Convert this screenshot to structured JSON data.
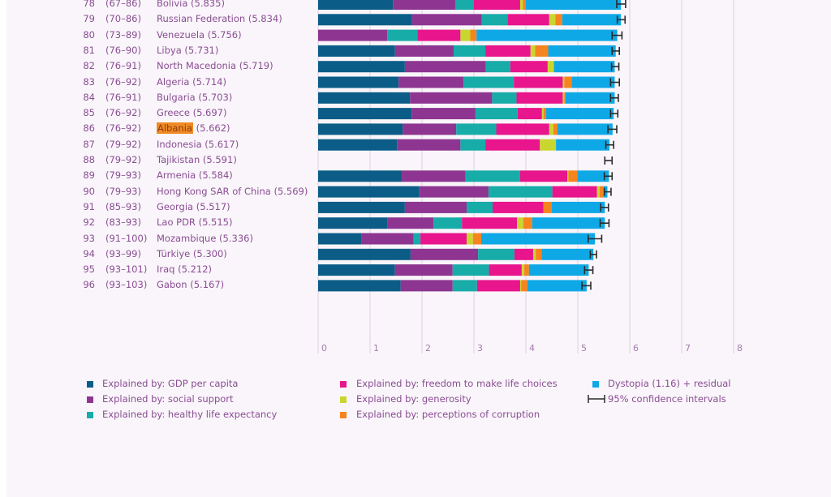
{
  "chart_data": {
    "type": "bar",
    "orientation": "horizontal",
    "stacked": true,
    "title": "",
    "xlabel": "",
    "ylabel": "",
    "xlim": [
      0,
      8
    ],
    "x_ticks": [
      "0",
      "1",
      "2",
      "3",
      "4",
      "5",
      "6",
      "7",
      "8"
    ],
    "grid": true,
    "legend_position": "bottom",
    "highlighted_country": "Albania",
    "highlight_color": "#f08a24",
    "series_names": [
      "GDP per capita",
      "social support",
      "healthy life expectancy",
      "freedom to make life choices",
      "generosity",
      "perceptions of corruption",
      "Dystopia + residual"
    ],
    "colors": [
      "#0b5d87",
      "#8e3591",
      "#17aca8",
      "#e8158c",
      "#c8d62e",
      "#f5841f",
      "#0fa8e6"
    ],
    "rows": [
      {
        "rank": "78",
        "range": "(67–86)",
        "country": "Bolivia",
        "score": "5.835",
        "values": [
          1.44,
          1.2,
          0.36,
          0.89,
          0.05,
          0.06,
          1.83
        ],
        "ci": [
          5.75,
          5.92
        ]
      },
      {
        "rank": "79",
        "range": "(70–86)",
        "country": "Russian Federation",
        "score": "5.834",
        "values": [
          1.81,
          1.34,
          0.5,
          0.8,
          0.12,
          0.13,
          1.13
        ],
        "ci": [
          5.76,
          5.91
        ]
      },
      {
        "rank": "80",
        "range": "(73–89)",
        "country": "Venezuela",
        "score": "5.756",
        "values": [
          0.0,
          1.33,
          0.58,
          0.83,
          0.19,
          0.12,
          2.71
        ],
        "ci": [
          5.66,
          5.85
        ]
      },
      {
        "rank": "81",
        "range": "(76–90)",
        "country": "Libya",
        "score": "5.731",
        "values": [
          1.48,
          1.13,
          0.61,
          0.87,
          0.09,
          0.25,
          1.3
        ],
        "ci": [
          5.66,
          5.8
        ]
      },
      {
        "rank": "82",
        "range": "(76–91)",
        "country": "North Macedonia",
        "score": "5.719",
        "values": [
          1.67,
          1.56,
          0.47,
          0.72,
          0.12,
          0.0,
          1.17
        ],
        "ci": [
          5.65,
          5.79
        ]
      },
      {
        "rank": "83",
        "range": "(76–92)",
        "country": "Algeria",
        "score": "5.714",
        "values": [
          1.55,
          1.25,
          0.97,
          0.94,
          0.03,
          0.14,
          0.83
        ],
        "ci": [
          5.63,
          5.8
        ]
      },
      {
        "rank": "84",
        "range": "(76–91)",
        "country": "Bulgaria",
        "score": "5.703",
        "values": [
          1.77,
          1.58,
          0.47,
          0.89,
          0.03,
          0.02,
          0.95
        ],
        "ci": [
          5.63,
          5.78
        ]
      },
      {
        "rank": "85",
        "range": "(76–92)",
        "country": "Greece",
        "score": "5.697",
        "values": [
          1.8,
          1.23,
          0.81,
          0.47,
          0.03,
          0.05,
          1.3
        ],
        "ci": [
          5.63,
          5.77
        ]
      },
      {
        "rank": "86",
        "range": "(76–92)",
        "country": "Albania",
        "score": "5.662",
        "values": [
          1.63,
          1.03,
          0.77,
          1.02,
          0.08,
          0.08,
          1.06
        ],
        "ci": [
          5.58,
          5.75
        ]
      },
      {
        "rank": "87",
        "range": "(79–92)",
        "country": "Indonesia",
        "score": "5.617",
        "values": [
          1.52,
          1.22,
          0.48,
          1.05,
          0.31,
          0.0,
          1.03
        ],
        "ci": [
          5.54,
          5.69
        ]
      },
      {
        "rank": "88",
        "range": "(79–92)",
        "country": "Tajikistan",
        "score": "5.591",
        "values": [],
        "ci": [
          5.52,
          5.66
        ]
      },
      {
        "rank": "89",
        "range": "(79–93)",
        "country": "Armenia",
        "score": "5.584",
        "values": [
          1.61,
          1.23,
          1.05,
          0.91,
          0.02,
          0.17,
          0.61
        ],
        "ci": [
          5.51,
          5.66
        ]
      },
      {
        "rank": "90",
        "range": "(79–93)",
        "country": "Hong Kong SAR of China",
        "score": "5.569",
        "values": [
          1.95,
          1.33,
          1.23,
          0.86,
          0.05,
          0.08,
          0.07
        ],
        "ci": [
          5.51,
          5.64
        ]
      },
      {
        "rank": "91",
        "range": "(85–93)",
        "country": "Georgia",
        "score": "5.517",
        "values": [
          1.67,
          1.19,
          0.5,
          0.98,
          0.0,
          0.16,
          1.02
        ],
        "ci": [
          5.44,
          5.59
        ]
      },
      {
        "rank": "92",
        "range": "(83–93)",
        "country": "Lao PDR",
        "score": "5.515",
        "values": [
          1.34,
          0.88,
          0.55,
          1.06,
          0.12,
          0.17,
          1.4
        ],
        "ci": [
          5.43,
          5.6
        ]
      },
      {
        "rank": "93",
        "range": "(91–100)",
        "country": "Mozambique",
        "score": "5.336",
        "values": [
          0.84,
          1.0,
          0.13,
          0.89,
          0.12,
          0.16,
          2.19
        ],
        "ci": [
          5.2,
          5.46
        ]
      },
      {
        "rank": "94",
        "range": "(93–99)",
        "country": "Türkiye",
        "score": "5.300",
        "values": [
          1.78,
          1.3,
          0.7,
          0.36,
          0.05,
          0.11,
          1.0
        ],
        "ci": [
          5.24,
          5.36
        ]
      },
      {
        "rank": "95",
        "range": "(93–101)",
        "country": "Iraq",
        "score": "5.212",
        "values": [
          1.48,
          1.11,
          0.7,
          0.63,
          0.05,
          0.09,
          1.15
        ],
        "ci": [
          5.13,
          5.29
        ]
      },
      {
        "rank": "96",
        "range": "(93–103)",
        "country": "Gabon",
        "score": "5.167",
        "values": [
          1.59,
          1.0,
          0.47,
          0.83,
          0.02,
          0.12,
          1.14
        ],
        "ci": [
          5.08,
          5.25
        ]
      }
    ]
  },
  "legend": {
    "items": [
      {
        "label": "Explained by: GDP per capita",
        "color": "#0b5d87"
      },
      {
        "label": "Explained by: social support",
        "color": "#8e3591"
      },
      {
        "label": "Explained by: healthy life expectancy",
        "color": "#17aca8"
      },
      {
        "label": "Explained by: freedom to make life choices",
        "color": "#e8158c"
      },
      {
        "label": "Explained by: generosity",
        "color": "#c8d62e"
      },
      {
        "label": "Explained by: perceptions of corruption",
        "color": "#f5841f"
      },
      {
        "label": "Dystopia (1.16) + residual",
        "color": "#0fa8e6"
      }
    ],
    "ci_label": "95% confidence intervals"
  }
}
